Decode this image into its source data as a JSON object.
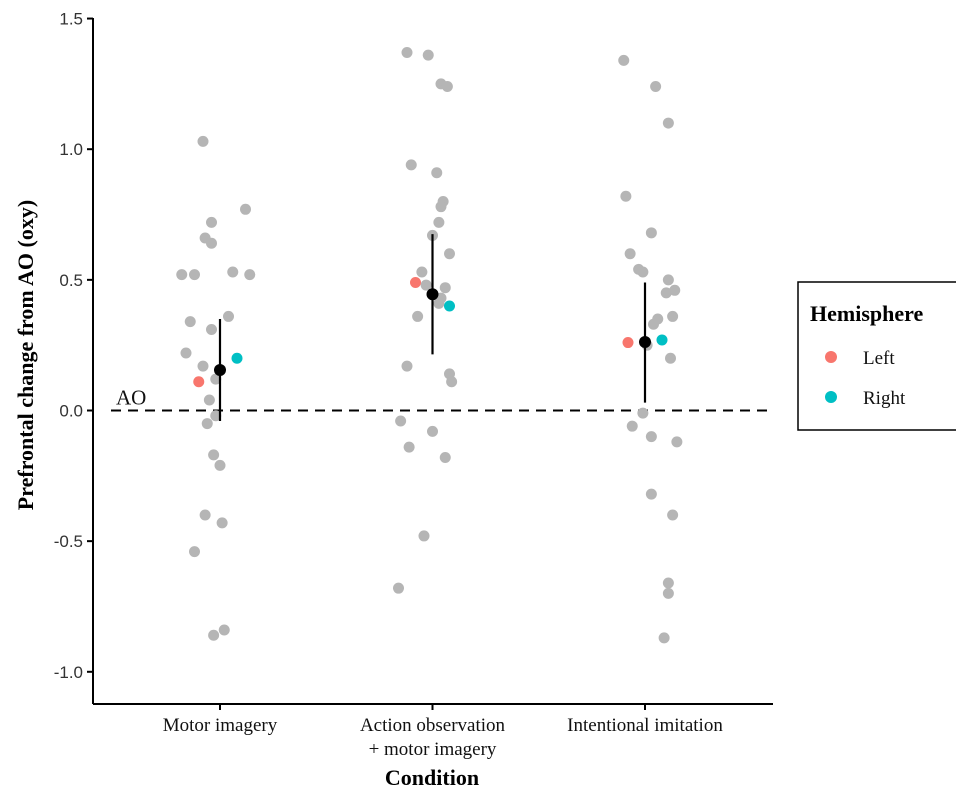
{
  "chart_data": {
    "type": "scatter",
    "xlabel": "Condition",
    "ylabel": "Prefrontal change from AO (oxy)",
    "ylim": [
      -1.1,
      1.55
    ],
    "yticks": [
      "-1.0",
      "-0.5",
      "0.0",
      "0.5",
      "1.0",
      "1.5"
    ],
    "categories": [
      [
        "Motor imagery"
      ],
      [
        "Action observation",
        "+ motor imagery"
      ],
      [
        "Intentional imitation"
      ]
    ],
    "reference_line": {
      "y": 0.0,
      "label": "AO",
      "style": "dashed"
    },
    "legend": {
      "title": "Hemisphere",
      "position": "right",
      "entries": [
        {
          "label": "Left",
          "color": "#F8766D"
        },
        {
          "label": "Right",
          "color": "#00BFC4"
        }
      ]
    },
    "colors": {
      "individual": "#b5b5b5",
      "mean": "#000000",
      "left": "#F8766D",
      "right": "#00BFC4"
    },
    "individual_points": [
      {
        "category": 0,
        "points": [
          [
            0.92,
            1.03
          ],
          [
            0.96,
            0.72
          ],
          [
            1.12,
            0.77
          ],
          [
            0.93,
            0.66
          ],
          [
            0.96,
            0.64
          ],
          [
            0.82,
            0.52
          ],
          [
            0.88,
            0.52
          ],
          [
            1.06,
            0.53
          ],
          [
            1.14,
            0.52
          ],
          [
            1.04,
            0.36
          ],
          [
            0.86,
            0.34
          ],
          [
            0.96,
            0.31
          ],
          [
            0.84,
            0.22
          ],
          [
            0.92,
            0.17
          ],
          [
            0.98,
            0.12
          ],
          [
            0.95,
            0.04
          ],
          [
            0.98,
            -0.02
          ],
          [
            0.94,
            -0.05
          ],
          [
            0.97,
            -0.17
          ],
          [
            1.0,
            -0.21
          ],
          [
            0.93,
            -0.4
          ],
          [
            1.01,
            -0.43
          ],
          [
            0.88,
            -0.54
          ],
          [
            1.02,
            -0.84
          ],
          [
            0.97,
            -0.86
          ]
        ]
      },
      {
        "category": 1,
        "points": [
          [
            1.88,
            1.37
          ],
          [
            1.98,
            1.36
          ],
          [
            2.04,
            1.25
          ],
          [
            2.07,
            1.24
          ],
          [
            1.9,
            0.94
          ],
          [
            2.02,
            0.91
          ],
          [
            2.05,
            0.8
          ],
          [
            2.04,
            0.78
          ],
          [
            2.03,
            0.72
          ],
          [
            2.0,
            0.67
          ],
          [
            2.08,
            0.6
          ],
          [
            1.95,
            0.53
          ],
          [
            1.97,
            0.48
          ],
          [
            2.06,
            0.47
          ],
          [
            2.04,
            0.43
          ],
          [
            2.03,
            0.41
          ],
          [
            1.93,
            0.36
          ],
          [
            1.88,
            0.17
          ],
          [
            2.08,
            0.14
          ],
          [
            2.09,
            0.11
          ],
          [
            1.85,
            -0.04
          ],
          [
            2.0,
            -0.08
          ],
          [
            1.89,
            -0.14
          ],
          [
            2.06,
            -0.18
          ],
          [
            1.96,
            -0.48
          ],
          [
            1.84,
            -0.68
          ]
        ]
      },
      {
        "category": 2,
        "points": [
          [
            2.9,
            1.34
          ],
          [
            3.05,
            1.24
          ],
          [
            3.11,
            1.1
          ],
          [
            2.91,
            0.82
          ],
          [
            3.03,
            0.68
          ],
          [
            2.93,
            0.6
          ],
          [
            2.97,
            0.54
          ],
          [
            2.99,
            0.53
          ],
          [
            3.11,
            0.5
          ],
          [
            3.14,
            0.46
          ],
          [
            3.1,
            0.45
          ],
          [
            3.06,
            0.35
          ],
          [
            3.13,
            0.36
          ],
          [
            3.04,
            0.33
          ],
          [
            3.12,
            0.2
          ],
          [
            3.01,
            0.25
          ],
          [
            2.99,
            -0.01
          ],
          [
            2.94,
            -0.06
          ],
          [
            3.03,
            -0.1
          ],
          [
            3.15,
            -0.12
          ],
          [
            3.03,
            -0.32
          ],
          [
            3.13,
            -0.4
          ],
          [
            3.11,
            -0.66
          ],
          [
            3.11,
            -0.7
          ],
          [
            3.09,
            -0.87
          ]
        ]
      }
    ],
    "hemisphere_points": [
      {
        "category": 0,
        "hemisphere": "Left",
        "x": 0.9,
        "y": 0.11
      },
      {
        "category": 0,
        "hemisphere": "Right",
        "x": 1.08,
        "y": 0.2
      },
      {
        "category": 1,
        "hemisphere": "Left",
        "x": 1.92,
        "y": 0.49
      },
      {
        "category": 1,
        "hemisphere": "Right",
        "x": 2.08,
        "y": 0.4
      },
      {
        "category": 2,
        "hemisphere": "Left",
        "x": 2.92,
        "y": 0.26
      },
      {
        "category": 2,
        "hemisphere": "Right",
        "x": 3.08,
        "y": 0.27
      }
    ],
    "means": [
      {
        "category": 0,
        "mean": 0.155,
        "lower": -0.04,
        "upper": 0.35
      },
      {
        "category": 1,
        "mean": 0.445,
        "lower": 0.215,
        "upper": 0.675
      },
      {
        "category": 2,
        "mean": 0.262,
        "lower": 0.03,
        "upper": 0.49
      }
    ]
  }
}
